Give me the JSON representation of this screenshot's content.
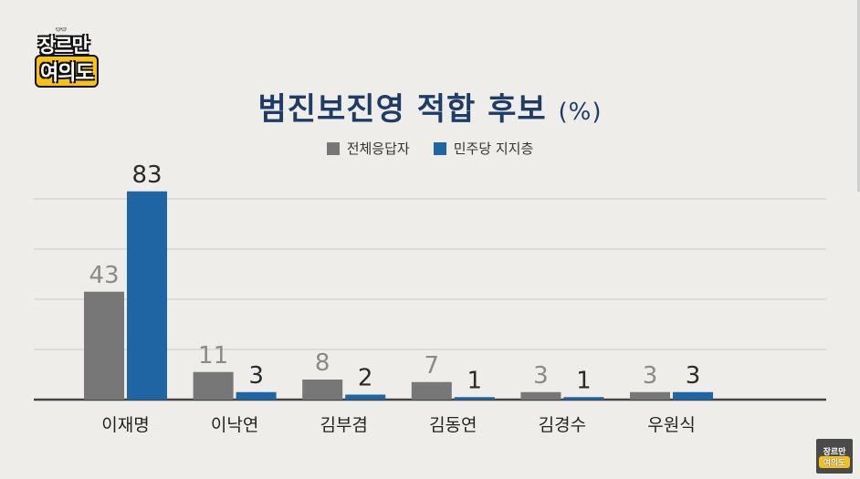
{
  "logo": {
    "line1": "장르만",
    "line2": "여의도",
    "glasses": "👓"
  },
  "title": "범진보진영 적합 후보",
  "title_unit": "(%)",
  "legend": [
    {
      "label": "전체응답자",
      "color": "#777777"
    },
    {
      "label": "민주당 지지층",
      "color": "#1d66a3"
    }
  ],
  "chart_data": {
    "type": "bar",
    "title": "범진보진영 적합 후보 (%)",
    "categories": [
      "이재명",
      "이낙연",
      "김부겸",
      "김동연",
      "김경수",
      "우원식"
    ],
    "series": [
      {
        "name": "전체응답자",
        "color": "#777777",
        "label_color": "#8a8a8a",
        "values": [
          43,
          11,
          8,
          7,
          3,
          3
        ]
      },
      {
        "name": "민주당 지지층",
        "color": "#1d66a3",
        "label_color": "#2a2a2a",
        "values": [
          83,
          3,
          2,
          1,
          1,
          3
        ]
      }
    ],
    "ylim": [
      0,
      100
    ],
    "grid": true,
    "legend_position": "top-center"
  },
  "corner_logo": {
    "line1": "장르만",
    "line2": "여의도"
  }
}
